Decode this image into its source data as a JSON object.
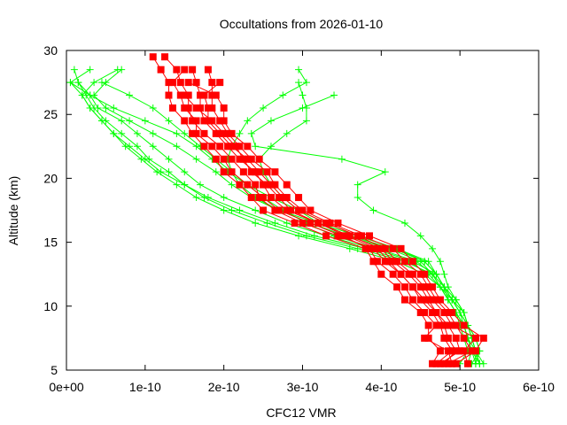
{
  "chart_data": {
    "type": "line",
    "title": "Occultations from 2026-01-10",
    "xlabel": "CFC12 VMR",
    "ylabel": "Altitude (km)",
    "xlim": [
      0,
      6e-10
    ],
    "ylim": [
      5,
      30
    ],
    "x_ticks": [
      "0e+00",
      "1e-10",
      "2e-10",
      "3e-10",
      "4e-10",
      "5e-10",
      "6e-10"
    ],
    "y_ticks": [
      "5",
      "10",
      "15",
      "20",
      "25",
      "30"
    ],
    "x_unit": 1e-10,
    "grid": false,
    "legend": "none",
    "red_altitudes": [
      29.5,
      28.5,
      27.5,
      26.5,
      25.5,
      24.5,
      23.5,
      22.5,
      21.5,
      20.5,
      19.5,
      18.5,
      17.5,
      16.5,
      15.5,
      14.5,
      13.5,
      12.5,
      11.5,
      10.5,
      9.5,
      8.5,
      7.5,
      6.5,
      5.5
    ],
    "green_altitudes": [
      28.5,
      27.5,
      26.5,
      25.5,
      24.5,
      23.5,
      22.5,
      21.5,
      20.5,
      19.5,
      18.5,
      17.5,
      16.5,
      15.5,
      14.5,
      13.5,
      12.5,
      11.5,
      10.5,
      9.5,
      8.5,
      7.5,
      6.5,
      5.5
    ],
    "series": [
      {
        "name": "red-1",
        "color": "#ff0000",
        "marker": "square",
        "x": [
          1.1,
          1.2,
          1.3,
          1.3,
          1.35,
          1.5,
          1.6,
          1.75,
          1.9,
          2.0,
          2.2,
          2.35,
          2.5,
          2.9,
          3.3,
          3.8,
          3.9,
          4.0,
          4.2,
          4.3,
          4.5,
          4.6,
          4.6,
          4.75,
          4.65
        ]
      },
      {
        "name": "red-2",
        "color": "#ff0000",
        "marker": "square",
        "x": [
          1.25,
          1.4,
          1.45,
          1.55,
          1.55,
          1.6,
          1.75,
          1.95,
          2.1,
          2.25,
          2.4,
          2.45,
          2.65,
          3.0,
          3.45,
          3.9,
          4.05,
          4.25,
          4.4,
          4.5,
          4.65,
          4.75,
          4.8,
          4.9,
          4.7
        ]
      },
      {
        "name": "red-3",
        "color": "#ff0000",
        "marker": "square",
        "x": [
          null,
          1.6,
          1.65,
          1.7,
          1.7,
          1.75,
          1.9,
          2.05,
          2.2,
          2.4,
          2.5,
          2.6,
          2.8,
          3.2,
          3.6,
          4.0,
          4.15,
          4.35,
          4.5,
          4.6,
          4.7,
          4.85,
          4.95,
          5.0,
          4.75
        ]
      },
      {
        "name": "red-4",
        "color": "#ff0000",
        "marker": "square",
        "x": [
          null,
          1.8,
          1.85,
          1.85,
          1.85,
          1.95,
          2.05,
          2.2,
          2.35,
          2.55,
          2.65,
          2.8,
          3.0,
          3.35,
          3.75,
          4.15,
          4.3,
          4.5,
          4.6,
          4.7,
          4.85,
          4.95,
          5.05,
          5.15,
          4.85
        ]
      },
      {
        "name": "red-5",
        "color": "#ff0000",
        "marker": "square",
        "x": [
          null,
          null,
          1.95,
          1.75,
          1.8,
          1.8,
          1.95,
          2.1,
          2.3,
          2.45,
          2.6,
          2.75,
          2.95,
          3.3,
          3.7,
          4.05,
          4.2,
          4.4,
          4.55,
          4.65,
          4.8,
          4.9,
          5.2,
          5.05,
          5.1
        ]
      },
      {
        "name": "red-6",
        "color": "#ff0000",
        "marker": "square",
        "x": [
          null,
          1.5,
          1.35,
          1.45,
          1.5,
          1.65,
          1.65,
          1.85,
          2.0,
          2.1,
          2.3,
          2.5,
          2.7,
          3.1,
          3.5,
          3.85,
          3.95,
          4.15,
          4.3,
          4.4,
          4.55,
          4.7,
          4.55,
          4.85,
          4.9
        ]
      },
      {
        "name": "red-7",
        "color": "#ff0000",
        "marker": "square",
        "x": [
          null,
          null,
          1.55,
          1.9,
          2.0,
          2.0,
          2.1,
          2.3,
          2.45,
          2.65,
          2.8,
          2.95,
          3.1,
          3.45,
          3.85,
          4.25,
          4.4,
          4.55,
          4.65,
          4.75,
          4.9,
          5.05,
          5.3,
          5.2,
          4.95
        ]
      },
      {
        "name": "red-8",
        "color": "#ff0000",
        "marker": "square",
        "x": [
          null,
          null,
          null,
          1.5,
          1.65,
          1.85,
          2.0,
          2.15,
          2.25,
          2.35,
          2.55,
          2.7,
          2.85,
          3.2,
          3.55,
          3.95,
          4.1,
          4.25,
          4.4,
          4.55,
          4.7,
          4.8,
          4.85,
          4.95,
          4.8
        ]
      },
      {
        "name": "green-1",
        "color": "#00ff00",
        "marker": "plus",
        "x": [
          0.3,
          0.05,
          0.3,
          0.4,
          0.7,
          0.9,
          1.1,
          1.3,
          1.5,
          1.7,
          2.0,
          2.4,
          2.8,
          3.3,
          3.9,
          4.4,
          4.7,
          4.8,
          4.9,
          5.0,
          5.1,
          5.15,
          5.2,
          5.3
        ]
      },
      {
        "name": "green-2",
        "color": "#00ff00",
        "marker": "plus",
        "x": [
          0.1,
          0.15,
          0.25,
          0.35,
          0.5,
          0.7,
          0.9,
          1.05,
          1.3,
          1.5,
          1.75,
          2.1,
          2.55,
          3.05,
          3.7,
          4.3,
          4.65,
          4.8,
          4.85,
          4.95,
          5.05,
          5.1,
          5.15,
          5.1
        ]
      },
      {
        "name": "green-3",
        "color": "#00ff00",
        "marker": "plus",
        "x": [
          0.65,
          0.35,
          0.2,
          0.3,
          0.45,
          0.6,
          0.75,
          0.95,
          1.15,
          1.4,
          1.65,
          2.0,
          2.4,
          2.95,
          3.6,
          4.2,
          4.55,
          4.75,
          4.9,
          5.0,
          5.1,
          5.2,
          5.25,
          5.2
        ]
      },
      {
        "name": "green-4",
        "color": "#00ff00",
        "marker": "plus",
        "x": [
          0.7,
          0.5,
          0.35,
          0.5,
          0.8,
          1.1,
          1.4,
          1.65,
          1.9,
          2.1,
          2.35,
          2.7,
          3.1,
          3.55,
          4.1,
          4.5,
          4.65,
          4.75,
          4.85,
          4.95,
          5.05,
          5.1,
          5.15,
          5.25
        ]
      },
      {
        "name": "green-5",
        "color": "#00ff00",
        "marker": "plus",
        "x": [
          null,
          0.15,
          0.3,
          0.6,
          1.0,
          1.4,
          1.65,
          1.85,
          2.05,
          2.3,
          2.6,
          2.95,
          3.3,
          3.7,
          4.2,
          4.55,
          4.7,
          4.8,
          4.9,
          5.05,
          5.1,
          5.2,
          5.25,
          5.15
        ]
      },
      {
        "name": "green-6",
        "color": "#00ff00",
        "marker": "plus",
        "x": [
          null,
          0.05,
          0.2,
          0.3,
          0.45,
          0.6,
          0.8,
          1.0,
          1.2,
          1.5,
          1.8,
          2.2,
          2.65,
          3.15,
          3.8,
          4.35,
          4.6,
          4.75,
          4.85,
          4.95,
          5.0,
          5.05,
          5.1,
          5.0
        ]
      },
      {
        "name": "green-7",
        "color": "#00ff00",
        "marker": "plus",
        "x": [
          2.95,
          3.05,
          2.75,
          2.5,
          2.3,
          2.2,
          2.1,
          2.05,
          2.1,
          2.2,
          2.4,
          2.7,
          3.2,
          3.7,
          4.2,
          4.6,
          4.7,
          4.8,
          4.9,
          5.0,
          5.05,
          5.1,
          5.2,
          5.2
        ]
      },
      {
        "name": "green-8",
        "color": "#00ff00",
        "marker": "plus",
        "x": [
          null,
          2.95,
          3.0,
          3.05,
          3.05,
          2.8,
          2.6,
          2.45,
          2.5,
          2.6,
          2.75,
          2.95,
          3.2,
          3.6,
          4.15,
          4.55,
          4.7,
          4.8,
          4.95,
          5.05,
          5.1,
          5.15,
          5.2,
          5.25
        ]
      },
      {
        "name": "green-9",
        "color": "#00ff00",
        "marker": "plus",
        "x": [
          null,
          null,
          3.4,
          3.0,
          2.6,
          2.35,
          2.4,
          3.5,
          4.05,
          3.7,
          3.7,
          3.9,
          4.3,
          4.5,
          4.65,
          4.75,
          4.8,
          4.85,
          4.95,
          5.05,
          5.1,
          5.15,
          5.2,
          5.25
        ]
      },
      {
        "name": "green-10",
        "color": "#00ff00",
        "marker": "plus",
        "x": [
          null,
          0.45,
          0.8,
          1.1,
          1.3,
          1.5,
          1.7,
          1.9,
          2.1,
          2.3,
          2.5,
          2.75,
          3.05,
          3.4,
          3.95,
          4.45,
          4.65,
          4.75,
          4.85,
          4.95,
          5.05,
          5.1,
          5.15,
          5.2
        ]
      }
    ]
  }
}
